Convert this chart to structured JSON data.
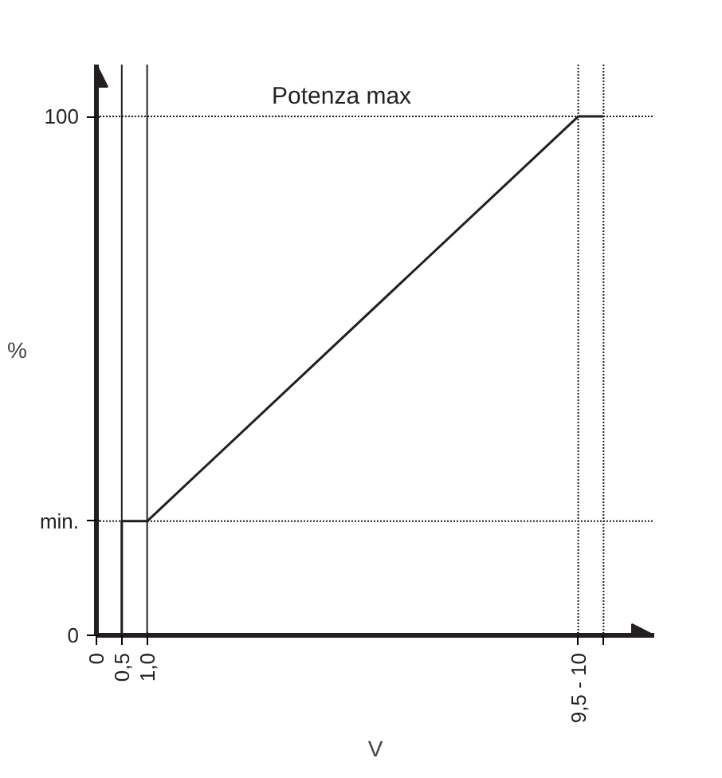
{
  "chart_data": {
    "type": "line",
    "xlabel": "V",
    "ylabel": "%",
    "x": [
      0.5,
      0.5,
      1,
      9.5,
      10
    ],
    "series": [
      {
        "color": "#231f20",
        "values": [
          0,
          22,
          22,
          100,
          100
        ]
      }
    ],
    "xlim": [
      0,
      11
    ],
    "ylim": [
      0,
      110
    ],
    "xticks": [
      0,
      {
        "value": 0.5,
        "label": "0,5"
      },
      {
        "value": 1,
        "label": "1,0"
      },
      {
        "value": 9.5,
        "label": "9,5 - 10"
      },
      {
        "value": 10,
        "label": null
      }
    ],
    "yticks": [
      0,
      {
        "value": 22,
        "label": "min."
      },
      100
    ],
    "ref_lines": [
      {
        "axis": "x",
        "value": 0.5,
        "line_style": "solid"
      },
      {
        "axis": "x",
        "value": 1,
        "line_style": "solid"
      },
      {
        "axis": "x",
        "value": 9.5,
        "line_style": "dotted"
      },
      {
        "axis": "x",
        "value": 10,
        "line_style": "dotted"
      },
      {
        "axis": "y",
        "value": 22,
        "line_style": "dotted"
      },
      {
        "axis": "y",
        "value": 100,
        "label": "Potenza max",
        "line_style": "dotted"
      }
    ],
    "grid": false,
    "marker": "none",
    "line_style": "solid"
  }
}
